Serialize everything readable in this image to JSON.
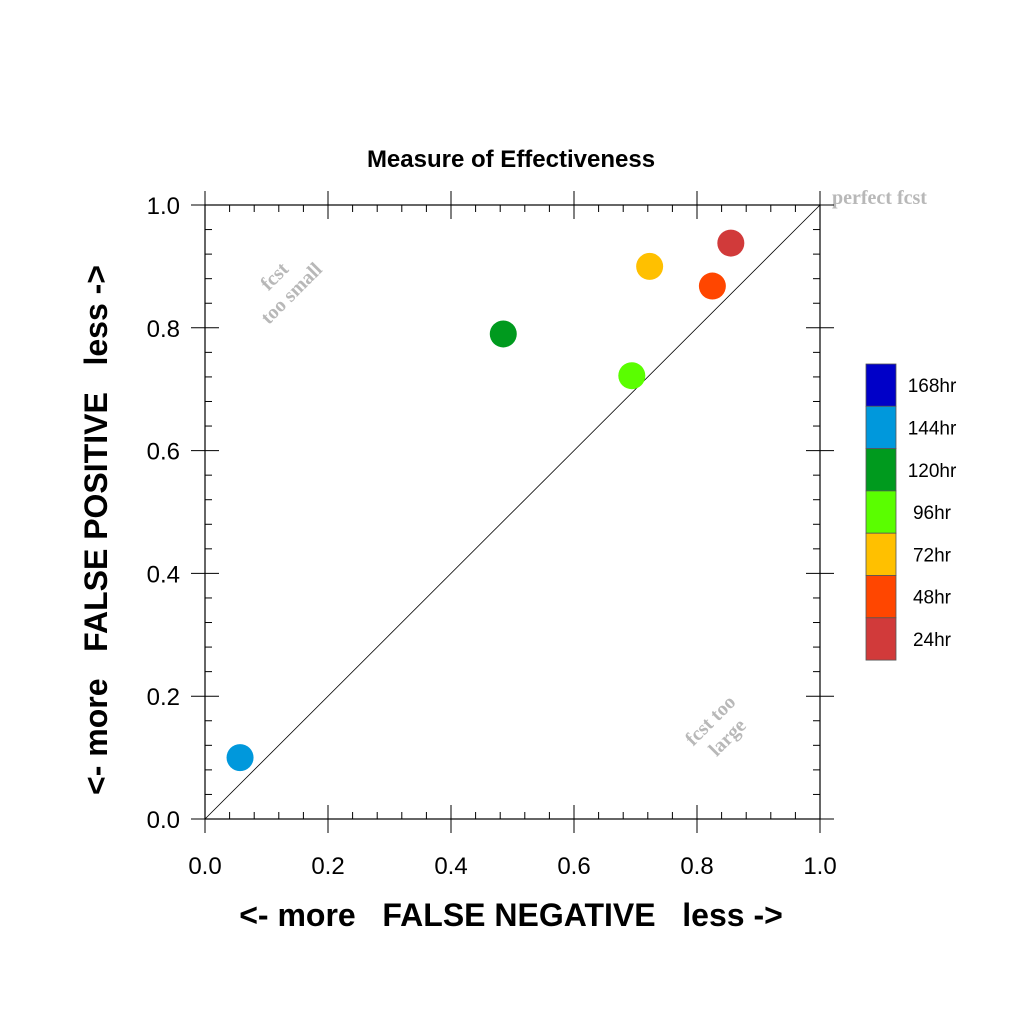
{
  "chart_data": {
    "type": "scatter",
    "title": "Measure of Effectiveness",
    "xlabel": "<- more   FALSE NEGATIVE   less ->",
    "ylabel": "<- more   FALSE POSITIVE   less ->",
    "xlim": [
      0.0,
      1.0
    ],
    "ylim": [
      0.0,
      1.0
    ],
    "xticks": [
      "0.0",
      "0.2",
      "0.4",
      "0.6",
      "0.8",
      "1.0"
    ],
    "yticks": [
      "0.0",
      "0.2",
      "0.4",
      "0.6",
      "0.8",
      "1.0"
    ],
    "tick_values": [
      0.0,
      0.2,
      0.4,
      0.6,
      0.8,
      1.0
    ],
    "grid": false,
    "reference_line": "diagonal",
    "annotations": {
      "perfect": "perfect fcst",
      "small_line1": "fcst",
      "small_line2": "too small",
      "large_line1": "fcst too",
      "large_line2": "large"
    },
    "legend_position": "right",
    "series": [
      {
        "name": "168hr",
        "color": "#0000c8"
      },
      {
        "name": "144hr",
        "color": "#0098dc",
        "x": 0.057,
        "y": 0.1
      },
      {
        "name": "120hr",
        "color": "#009a1e",
        "x": 0.485,
        "y": 0.79
      },
      {
        "name": "96hr",
        "color": "#5afe00",
        "x": 0.694,
        "y": 0.722
      },
      {
        "name": "72hr",
        "color": "#ffc000",
        "x": 0.723,
        "y": 0.9
      },
      {
        "name": "48hr",
        "color": "#ff4600",
        "x": 0.825,
        "y": 0.868
      },
      {
        "name": "24hr",
        "color": "#d13a3a",
        "x": 0.855,
        "y": 0.938
      }
    ]
  }
}
